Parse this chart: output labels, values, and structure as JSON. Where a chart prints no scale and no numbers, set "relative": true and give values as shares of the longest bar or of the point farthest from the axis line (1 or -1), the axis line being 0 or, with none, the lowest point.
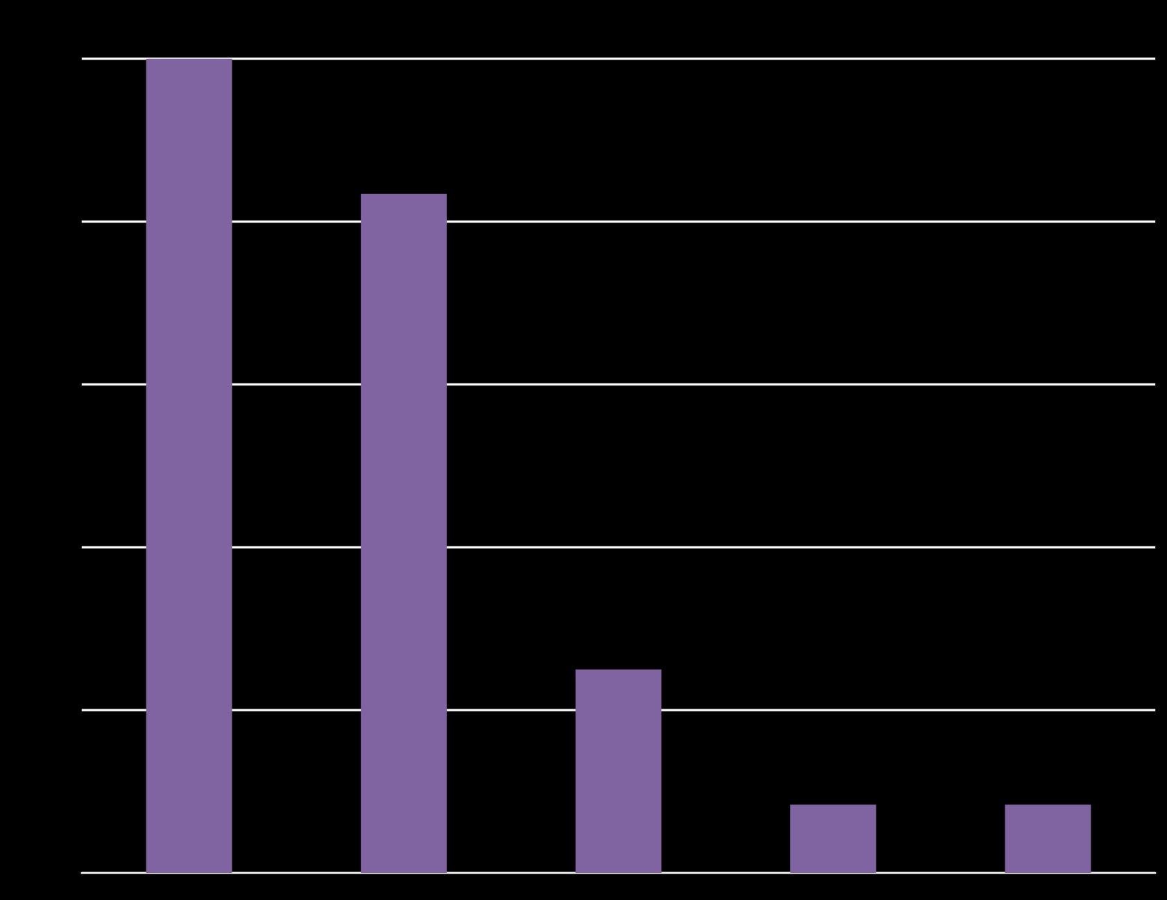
{
  "chart_data": {
    "type": "bar",
    "relative": true,
    "categories": [
      null,
      null,
      null,
      null,
      null
    ],
    "values": [
      1,
      0.834,
      0.25,
      0.084,
      0.084
    ],
    "color": "#8064a2",
    "grid": "y"
  }
}
